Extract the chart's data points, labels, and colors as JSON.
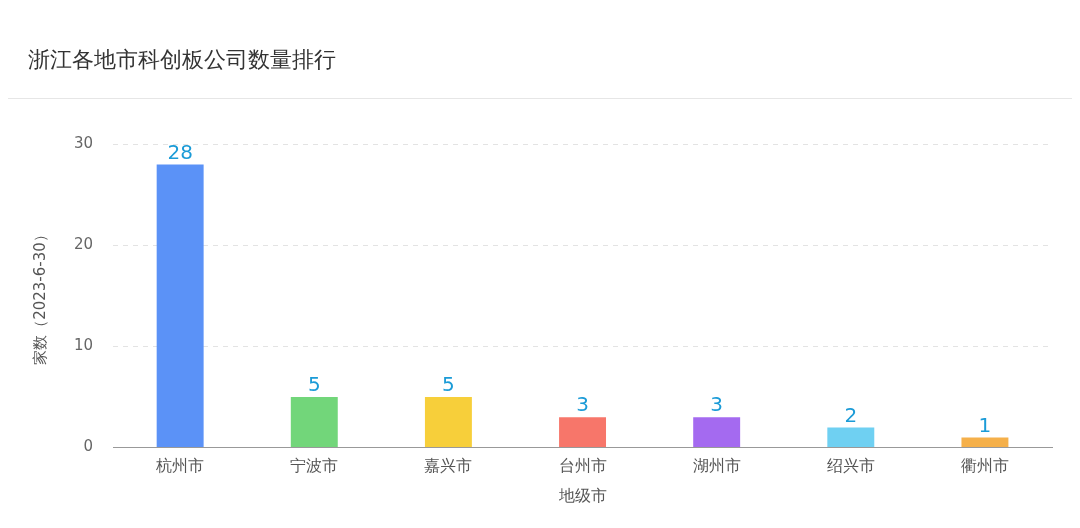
{
  "chart_data": {
    "type": "bar",
    "title": "浙江各地市科创板公司数量排行",
    "xlabel": "地级市",
    "ylabel": "家数（2023-6-30）",
    "categories": [
      "杭州市",
      "宁波市",
      "嘉兴市",
      "台州市",
      "湖州市",
      "绍兴市",
      "衢州市"
    ],
    "values": [
      28,
      5,
      5,
      3,
      3,
      2,
      1
    ],
    "colors": [
      "#5b92f7",
      "#72d67a",
      "#f7cf3a",
      "#f7766a",
      "#a46af0",
      "#6fd0f2",
      "#f5b04a"
    ],
    "ylim": [
      0,
      30
    ],
    "yticks": [
      0,
      10,
      20,
      30
    ],
    "grid": "y",
    "legend": false,
    "data_labels": true
  }
}
